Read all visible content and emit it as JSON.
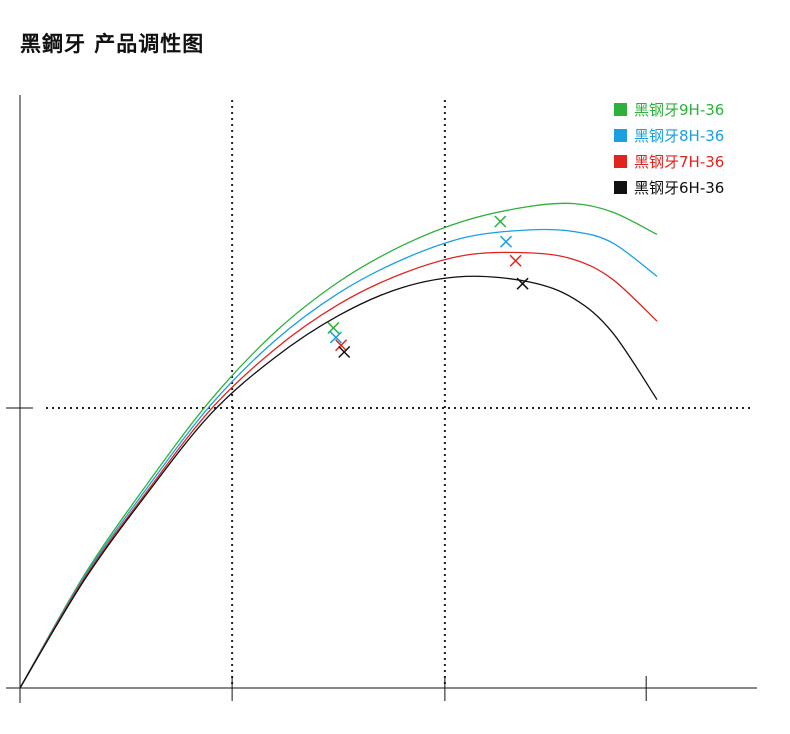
{
  "page": {
    "title": "黑鋼牙 产品调性图"
  },
  "chart_data": {
    "type": "line",
    "title": "黑鋼牙 产品调性图",
    "xlabel": "",
    "ylabel": "",
    "xlim": [
      0,
      100
    ],
    "ylim": [
      0,
      100
    ],
    "grid": false,
    "axis_ticks": {
      "x": [
        0,
        33.3,
        66.7,
        98.3
      ],
      "y": [
        50
      ]
    },
    "reference_lines": {
      "vertical": [
        33.3,
        66.7
      ],
      "horizontal": [
        50
      ]
    },
    "legend_position": "top-right",
    "series": [
      {
        "name": "黑钢牙9H-36",
        "color": "#2DB13A",
        "points": [
          [
            0,
            0
          ],
          [
            10,
            20
          ],
          [
            20,
            36.5
          ],
          [
            30,
            51.5
          ],
          [
            40,
            63.5
          ],
          [
            50,
            72.5
          ],
          [
            60,
            79
          ],
          [
            70,
            83.5
          ],
          [
            80,
            86
          ],
          [
            87,
            86.5
          ],
          [
            93,
            85
          ],
          [
            100,
            81
          ]
        ],
        "markers": [
          [
            49.2,
            64.3
          ],
          [
            75.4,
            83.3
          ]
        ]
      },
      {
        "name": "黑钢牙8H-36",
        "color": "#1AA0E0",
        "points": [
          [
            0,
            0
          ],
          [
            10,
            19.7
          ],
          [
            20,
            35.8
          ],
          [
            30,
            50.6
          ],
          [
            40,
            62
          ],
          [
            50,
            70.5
          ],
          [
            60,
            76.5
          ],
          [
            70,
            80.5
          ],
          [
            80,
            81.8
          ],
          [
            87,
            81.5
          ],
          [
            93,
            79.5
          ],
          [
            100,
            73.5
          ]
        ],
        "markers": [
          [
            49.6,
            62.6
          ],
          [
            76.3,
            79.7
          ]
        ]
      },
      {
        "name": "黑钢牙7H-36",
        "color": "#E0251F",
        "points": [
          [
            0,
            0
          ],
          [
            10,
            19.4
          ],
          [
            20,
            35.2
          ],
          [
            30,
            49.8
          ],
          [
            40,
            60.5
          ],
          [
            50,
            68.5
          ],
          [
            60,
            74
          ],
          [
            70,
            77.3
          ],
          [
            80,
            77.7
          ],
          [
            87,
            76.5
          ],
          [
            93,
            73
          ],
          [
            100,
            65.5
          ]
        ],
        "markers": [
          [
            50.4,
            61.2
          ],
          [
            77.8,
            76.3
          ]
        ]
      },
      {
        "name": "黑钢牙6H-36",
        "color": "#111111",
        "points": [
          [
            0,
            0
          ],
          [
            10,
            19.1
          ],
          [
            20,
            34.8
          ],
          [
            30,
            49
          ],
          [
            40,
            59
          ],
          [
            50,
            66.5
          ],
          [
            60,
            71.5
          ],
          [
            70,
            73.5
          ],
          [
            80,
            72.5
          ],
          [
            87,
            69.5
          ],
          [
            93,
            63.5
          ],
          [
            100,
            51.5
          ]
        ],
        "markers": [
          [
            50.9,
            60
          ],
          [
            78.9,
            72.2
          ]
        ]
      }
    ]
  }
}
